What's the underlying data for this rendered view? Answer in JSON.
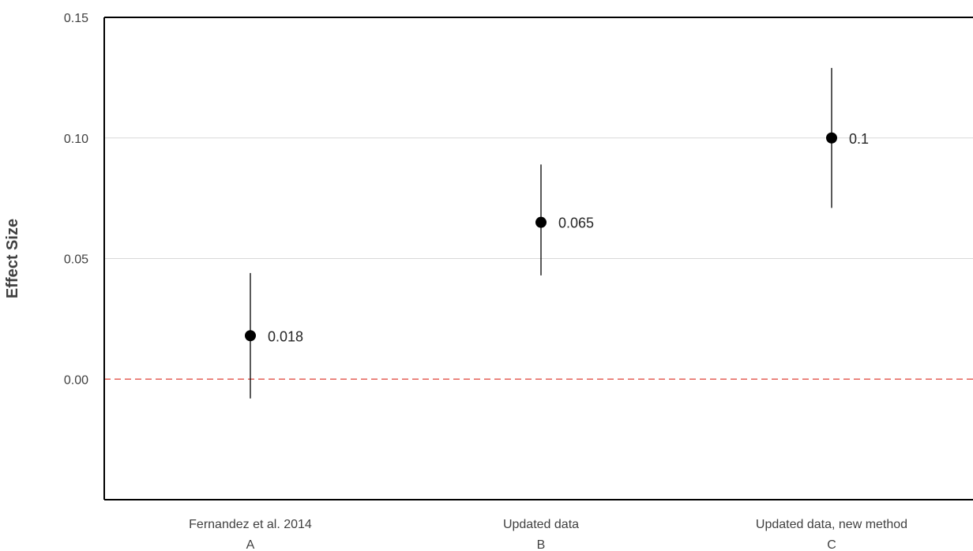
{
  "chart_data": {
    "type": "scatter",
    "ylabel": "Effect Size",
    "ylim": [
      -0.05,
      0.15
    ],
    "yticks": [
      "0.00",
      "0.05",
      "0.10",
      "0.15"
    ],
    "ytick_values": [
      0.0,
      0.05,
      0.1,
      0.15
    ],
    "grid": true,
    "reference_line": {
      "y": 0.0,
      "style": "dashed",
      "color": "#e0443a"
    },
    "categories": [
      {
        "name": "Fernandez et al. 2014",
        "letter": "A"
      },
      {
        "name": "Updated data",
        "letter": "B"
      },
      {
        "name": "Updated data, new method",
        "letter": "C"
      }
    ],
    "points": [
      {
        "category": "A",
        "value": 0.018,
        "ci_low": -0.008,
        "ci_high": 0.044,
        "label": "0.018"
      },
      {
        "category": "B",
        "value": 0.065,
        "ci_low": 0.043,
        "ci_high": 0.089,
        "label": "0.065"
      },
      {
        "category": "C",
        "value": 0.1,
        "ci_low": 0.071,
        "ci_high": 0.129,
        "label": "0.1"
      }
    ],
    "colors": {
      "point": "#000000",
      "errorbar": "#000000",
      "grid": "#d9d9d9",
      "axis": "#000000"
    }
  }
}
